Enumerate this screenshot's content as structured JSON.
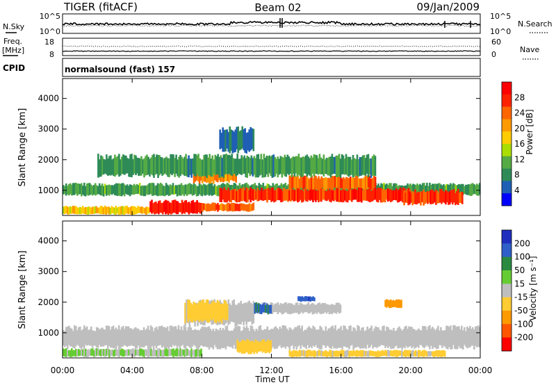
{
  "header": {
    "station": "TIGER (fitACF)",
    "beam": "Beam 02",
    "date": "09/Jan/2009"
  },
  "panels": {
    "nsky_label": "N.Sky",
    "nsearch_label": "N.Search",
    "freq_label_1": "Freq.",
    "freq_label_2": "[MHz]",
    "nave_label": "Nave",
    "cpid_label": "CPID",
    "cpid_value": "normalsound (fast) 157",
    "nsky_ticks": [
      "10^5",
      "10^0"
    ],
    "nsearch_ticks": [
      "10^5",
      "10^0"
    ],
    "freq_ticks": [
      "18",
      "8"
    ],
    "nave_ticks": [
      "60",
      "0"
    ]
  },
  "colorbars": {
    "power": {
      "label": "Power [dB]",
      "ticks": [
        "28",
        "24",
        "20",
        "16",
        "12",
        "8",
        "4"
      ]
    },
    "velocity": {
      "label": "Velocity [m s⁻¹]",
      "ticks": [
        "200",
        "100",
        "50",
        "15",
        "-15",
        "-50",
        "-100",
        "-200"
      ]
    }
  },
  "colors": {
    "power_scale": [
      "#0000ff",
      "#1f5fb5",
      "#2e8b57",
      "#55aa44",
      "#aadd00",
      "#ffcc00",
      "#ff9900",
      "#ff6600",
      "#ff2200",
      "#ff0000"
    ],
    "velocity_scale": [
      "#1e2fbe",
      "#2f5fc8",
      "#2a8a40",
      "#66cc33",
      "#bebebe",
      "#ffcc33",
      "#ff9900",
      "#ff5500",
      "#ff0000"
    ],
    "ground_scatter": "#bebebe"
  },
  "chart_data": [
    {
      "type": "heatmap",
      "title": "",
      "xlabel": "Time UT",
      "ylabel": "Slant Range [km]",
      "x_ticks": [
        "00:00",
        "04:00",
        "08:00",
        "12:00",
        "16:00",
        "20:00",
        "00:00"
      ],
      "x_range_hours": [
        0,
        24
      ],
      "y_ticks": [
        1000,
        2000,
        3000,
        4000
      ],
      "ylim": [
        180,
        4650
      ],
      "colorbar": "Power [dB]",
      "color_range": [
        0,
        32
      ],
      "bands": [
        {
          "t0": 0.0,
          "t1": 5.0,
          "r0": 200,
          "r1": 500,
          "v": 18
        },
        {
          "t0": 5.0,
          "t1": 8.0,
          "r0": 200,
          "r1": 700,
          "v": 29
        },
        {
          "t0": 8.0,
          "t1": 11.0,
          "r0": 300,
          "r1": 600,
          "v": 25
        },
        {
          "t0": 0.0,
          "t1": 24.0,
          "r0": 800,
          "r1": 1250,
          "v": 10
        },
        {
          "t0": 9.0,
          "t1": 20.0,
          "r0": 600,
          "r1": 1100,
          "v": 27
        },
        {
          "t0": 13.0,
          "t1": 18.0,
          "r0": 1000,
          "r1": 1500,
          "v": 24
        },
        {
          "t0": 19.5,
          "t1": 23.0,
          "r0": 500,
          "r1": 1050,
          "v": 27
        },
        {
          "t0": 7.5,
          "t1": 10.0,
          "r0": 1200,
          "r1": 1900,
          "v": 22
        },
        {
          "t0": 2.0,
          "t1": 18.0,
          "r0": 1400,
          "r1": 2200,
          "v": 9
        },
        {
          "t0": 9.0,
          "t1": 11.0,
          "r0": 2200,
          "r1": 3100,
          "v": 6
        }
      ]
    },
    {
      "type": "heatmap",
      "title": "",
      "xlabel": "Time UT",
      "ylabel": "Slant Range [km]",
      "x_ticks": [
        "00:00",
        "04:00",
        "08:00",
        "12:00",
        "16:00",
        "20:00",
        "00:00"
      ],
      "x_range_hours": [
        0,
        24
      ],
      "y_ticks": [
        1000,
        2000,
        3000,
        4000
      ],
      "ylim": [
        180,
        4650
      ],
      "colorbar": "Velocity [m s⁻¹]",
      "color_range": [
        -250,
        250
      ],
      "bands": [
        {
          "t0": 0.0,
          "t1": 24.0,
          "r0": 450,
          "r1": 1250,
          "v": 0
        },
        {
          "t0": 0.0,
          "t1": 8.0,
          "r0": 200,
          "r1": 500,
          "v": 30
        },
        {
          "t0": 10.0,
          "t1": 12.0,
          "r0": 300,
          "r1": 800,
          "v": -60
        },
        {
          "t0": 13.0,
          "t1": 22.0,
          "r0": 200,
          "r1": 450,
          "v": -40
        },
        {
          "t0": 7.0,
          "t1": 11.0,
          "r0": 1200,
          "r1": 2100,
          "v": 0
        },
        {
          "t0": 7.0,
          "t1": 9.5,
          "r0": 1300,
          "r1": 2100,
          "v": -45
        },
        {
          "t0": 10.0,
          "t1": 16.0,
          "r0": 1600,
          "r1": 2000,
          "v": 0
        },
        {
          "t0": 11.0,
          "t1": 12.0,
          "r0": 1600,
          "r1": 2000,
          "v": 150
        },
        {
          "t0": 13.5,
          "t1": 14.5,
          "r0": 2000,
          "r1": 2200,
          "v": 180
        },
        {
          "t0": 18.5,
          "t1": 19.5,
          "r0": 1800,
          "r1": 2100,
          "v": -120
        }
      ]
    }
  ]
}
